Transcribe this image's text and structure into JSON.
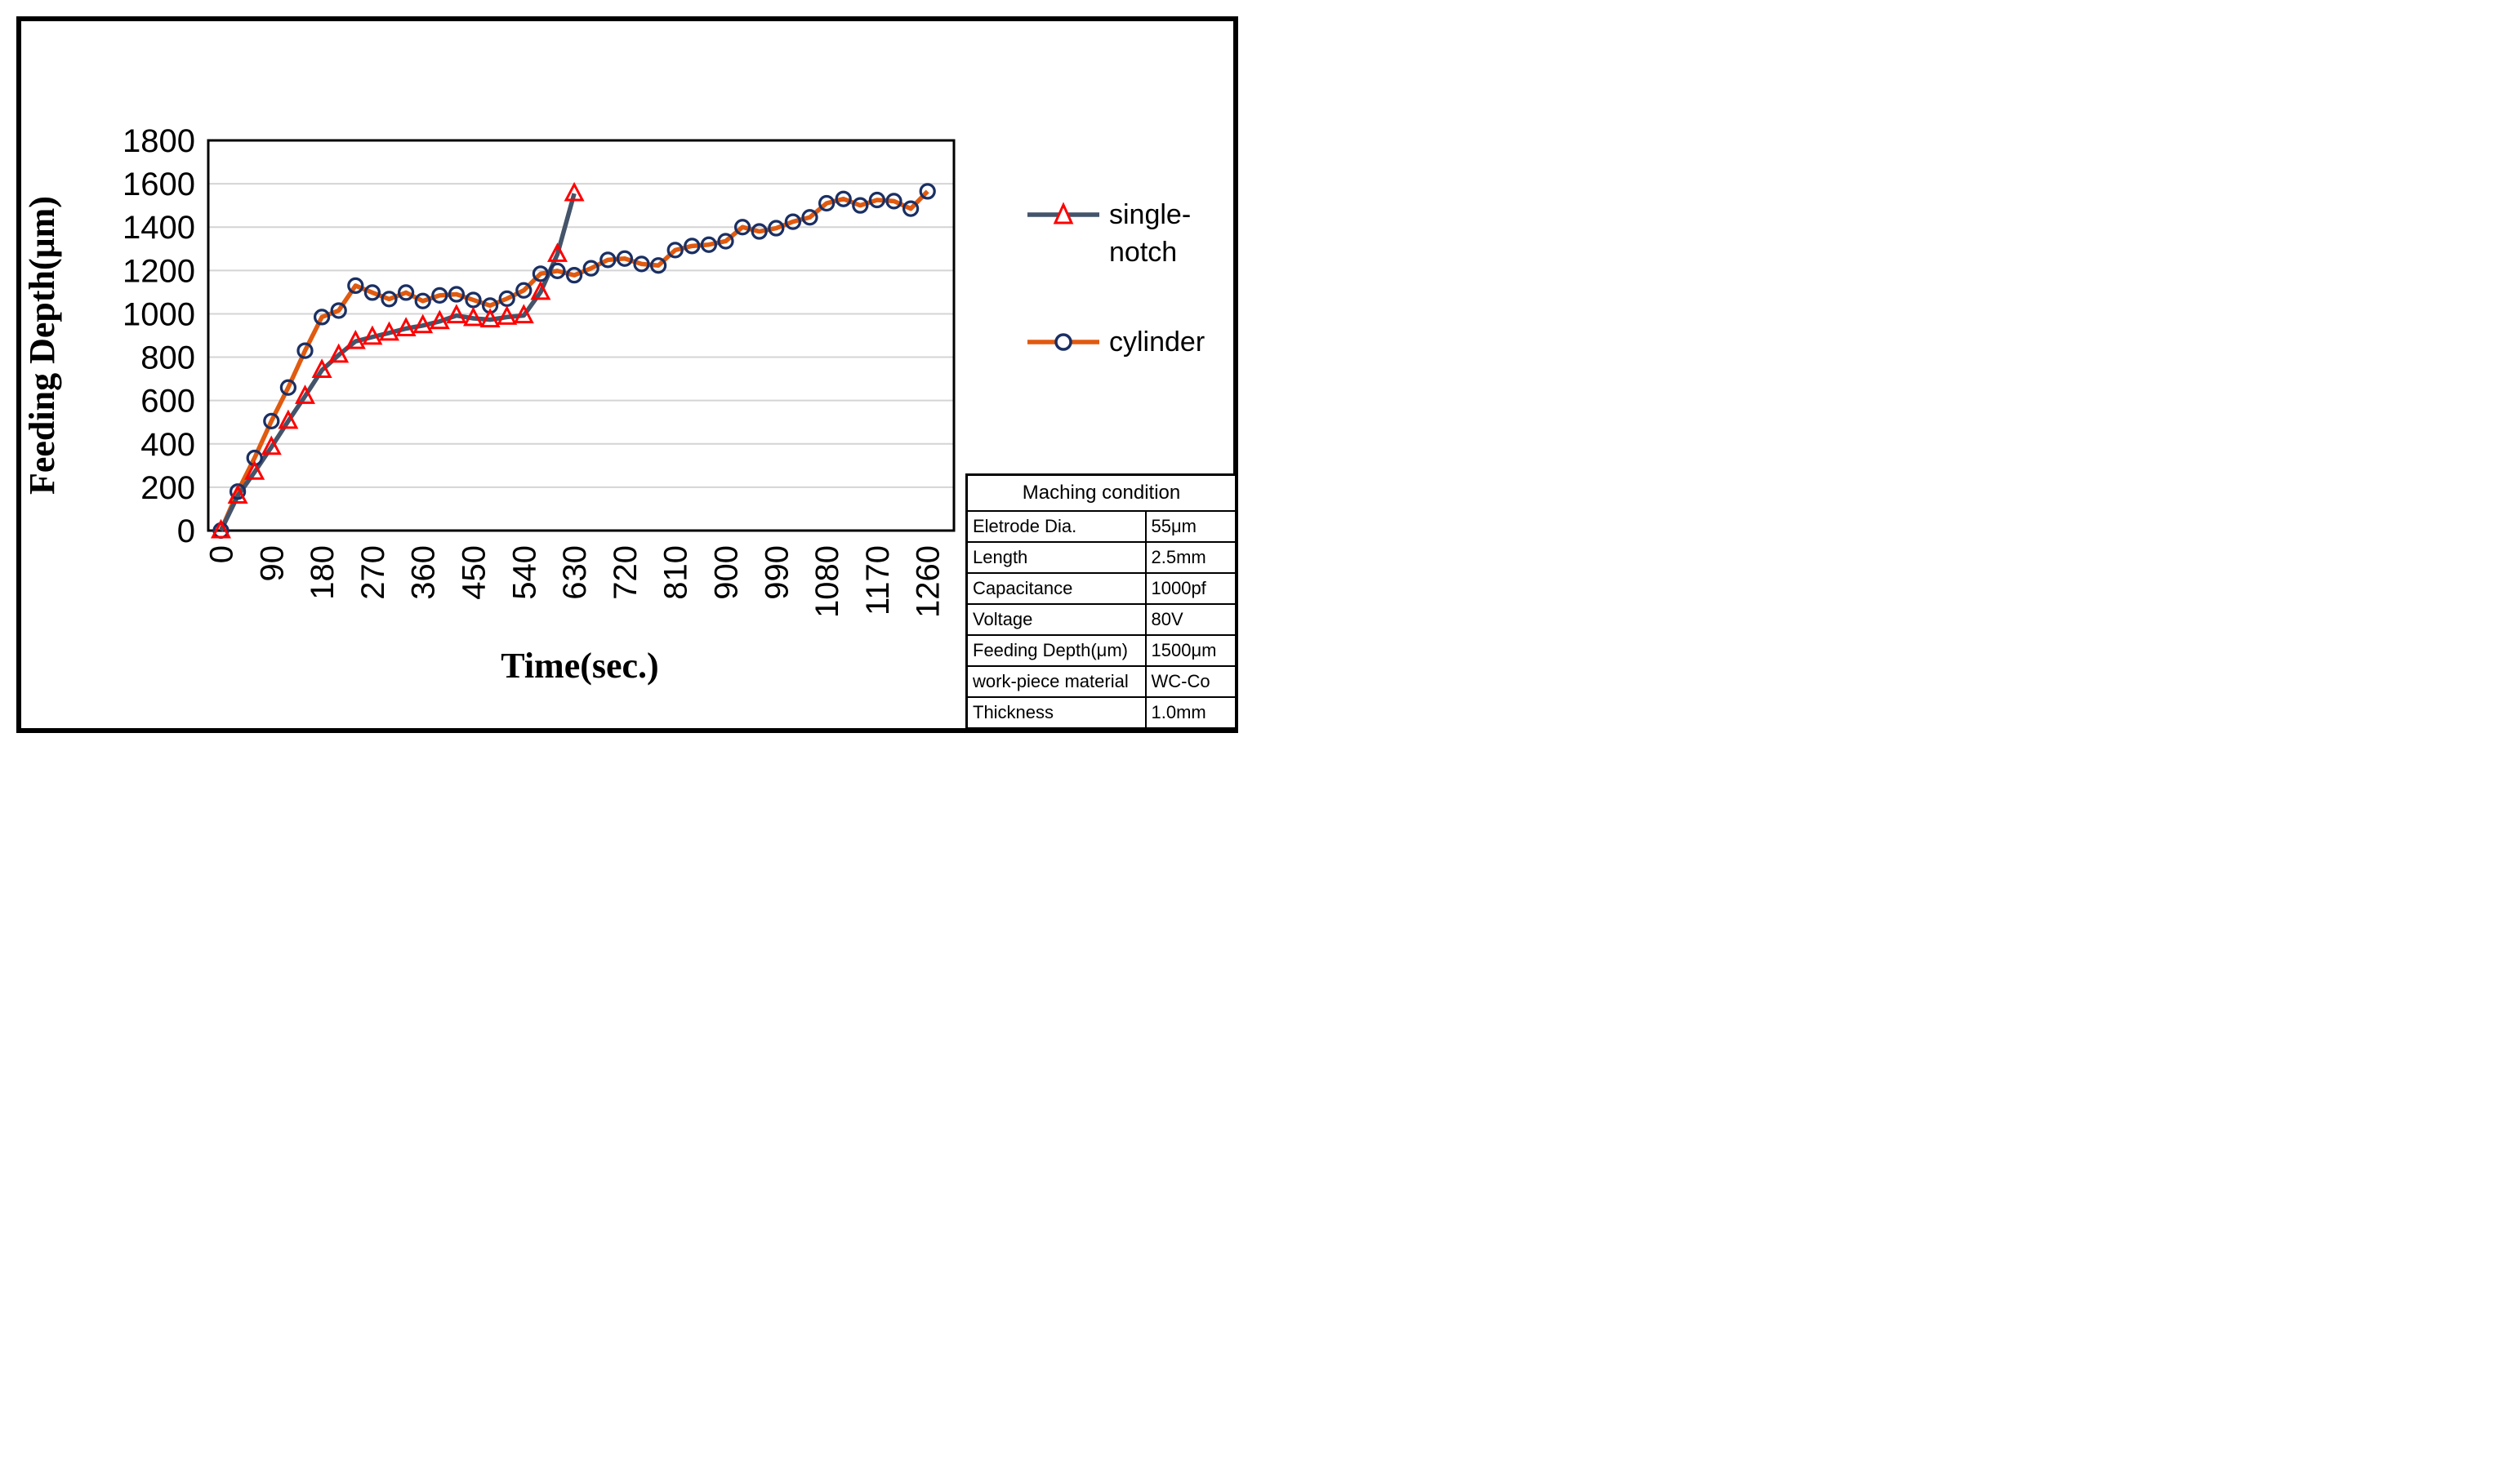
{
  "figure": {
    "background": "#FFFFFF",
    "border_color": "#000000",
    "gridline_color": "#D4D4D4"
  },
  "chart_data": {
    "type": "line",
    "title": "",
    "xlabel": "Time(sec.)",
    "ylabel": "Feeding Depth(μm)",
    "ylim": [
      0,
      1800
    ],
    "y_tick_step": 200,
    "y_tick_labels": [
      0,
      200,
      400,
      600,
      800,
      1000,
      1200,
      1400,
      1600,
      1800
    ],
    "x_tick_labels": [
      0,
      90,
      180,
      270,
      360,
      450,
      540,
      630,
      720,
      810,
      900,
      990,
      1080,
      1170,
      1260
    ],
    "x_interval_sec": 30,
    "grid": "horizontal",
    "legend_position": "right",
    "series": [
      {
        "name": "single-notch",
        "legend_lines": [
          "single-",
          "notch"
        ],
        "line_color": "#44546A",
        "marker": "triangle",
        "marker_color": "#FF0000",
        "x": [
          0,
          30,
          60,
          90,
          120,
          150,
          180,
          210,
          240,
          270,
          300,
          330,
          360,
          390,
          420,
          450,
          480,
          510,
          540,
          570,
          600,
          630
        ],
        "values": [
          0,
          160,
          270,
          385,
          505,
          620,
          740,
          810,
          873,
          893,
          912,
          932,
          946,
          965,
          992,
          979,
          973,
          985,
          992,
          1100,
          1275,
          1555
        ]
      },
      {
        "name": "cylinder",
        "legend_lines": [
          "cylinder"
        ],
        "line_color": "#E05A10",
        "marker": "circle",
        "marker_color": "#1A2F63",
        "x": [
          0,
          30,
          60,
          90,
          120,
          150,
          180,
          210,
          240,
          270,
          300,
          330,
          360,
          390,
          420,
          450,
          480,
          510,
          540,
          570,
          600,
          630,
          660,
          690,
          720,
          750,
          780,
          810,
          840,
          870,
          900,
          930,
          960,
          990,
          1020,
          1050,
          1080,
          1110,
          1140,
          1170,
          1200,
          1230,
          1260
        ],
        "values": [
          0,
          180,
          335,
          505,
          660,
          830,
          985,
          1015,
          1130,
          1098,
          1068,
          1098,
          1059,
          1085,
          1090,
          1064,
          1038,
          1070,
          1108,
          1185,
          1198,
          1178,
          1210,
          1249,
          1255,
          1230,
          1223,
          1294,
          1313,
          1319,
          1335,
          1400,
          1380,
          1395,
          1425,
          1445,
          1510,
          1530,
          1500,
          1525,
          1520,
          1485,
          1565
        ]
      }
    ]
  },
  "table": {
    "title": "Maching condition",
    "rows": [
      {
        "label": "Eletrode Dia.",
        "value": "55μm"
      },
      {
        "label": "Length",
        "value": "2.5mm"
      },
      {
        "label": "Capacitance",
        "value": "1000pf"
      },
      {
        "label": "Voltage",
        "value": "80V"
      },
      {
        "label": "Feeding Depth(μm)",
        "value": "1500μm"
      },
      {
        "label": "work-piece material",
        "value": "WC-Co"
      },
      {
        "label": "Thickness",
        "value": "1.0mm"
      }
    ]
  }
}
